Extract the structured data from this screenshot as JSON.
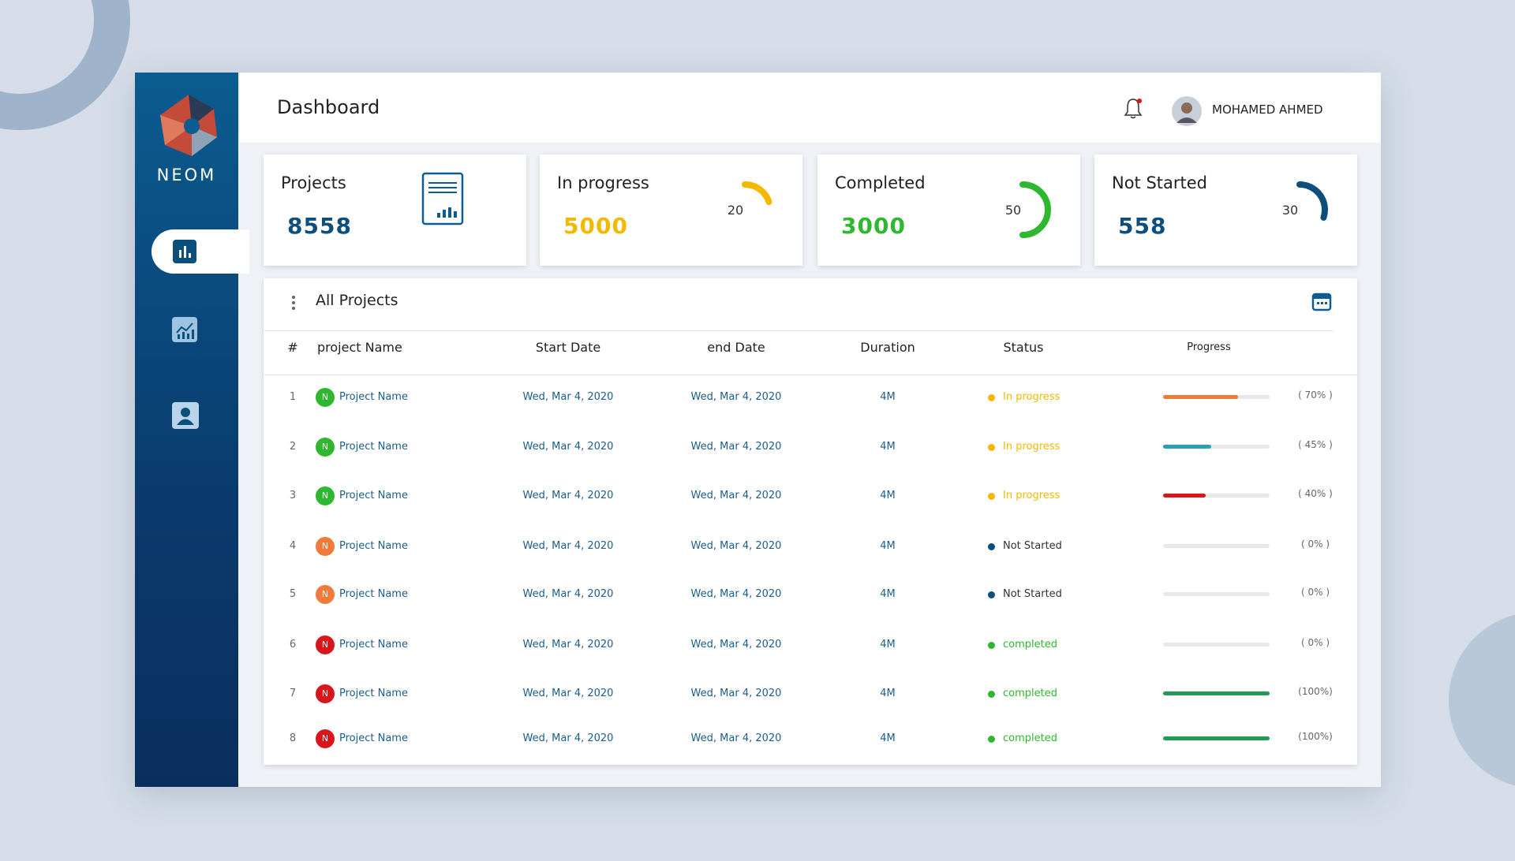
{
  "sidebar": {
    "brand": "NEOM"
  },
  "header": {
    "title": "Dashboard",
    "user": "MOHAMED AHMED"
  },
  "cards": [
    {
      "label": "Projects",
      "value": 8558,
      "color": "#0d4f7c"
    },
    {
      "label": "In progress",
      "value": 5000,
      "gauge": 20,
      "color": "#f5b800"
    },
    {
      "label": "Completed",
      "value": 3000,
      "gauge": 50,
      "color": "#2fb82f"
    },
    {
      "label": "Not Started",
      "value": 558,
      "gauge": 30,
      "color": "#0d4f7c"
    }
  ],
  "table": {
    "title": "All Projects",
    "columns": [
      "#",
      "project Name",
      "Start Date",
      "end Date",
      "Duration",
      "Status",
      "Progress"
    ],
    "rows": [
      {
        "index": 1,
        "initial": "N",
        "initial_color": "#2fb82f",
        "name": "Project Name",
        "start": "Wed, Mar 4, 2020",
        "end": "Wed, Mar 4, 2020",
        "duration": "4M",
        "status": "In progress",
        "status_color": "#f5b800",
        "progress": 70,
        "progress_label": "( 70% )",
        "bar_color": "#f07a3a"
      },
      {
        "index": 2,
        "initial": "N",
        "initial_color": "#2fb82f",
        "name": "Project Name",
        "start": "Wed, Mar 4, 2020",
        "end": "Wed, Mar 4, 2020",
        "duration": "4M",
        "status": "In progress",
        "status_color": "#f5b800",
        "progress": 45,
        "progress_label": "( 45% )",
        "bar_color": "#2a9fb5"
      },
      {
        "index": 3,
        "initial": "N",
        "initial_color": "#2fb82f",
        "name": "Project Name",
        "start": "Wed, Mar 4, 2020",
        "end": "Wed, Mar 4, 2020",
        "duration": "4M",
        "status": "In progress",
        "status_color": "#f5b800",
        "progress": 40,
        "progress_label": "( 40% )",
        "bar_color": "#d9161c"
      },
      {
        "index": 4,
        "initial": "N",
        "initial_color": "#f07a3a",
        "name": "Project Name",
        "start": "Wed, Mar 4, 2020",
        "end": "Wed, Mar 4, 2020",
        "duration": "4M",
        "status": "Not Started",
        "status_color": "#0d4f7c",
        "progress": 0,
        "progress_label": "( 0% )",
        "bar_color": "#0d4f7c"
      },
      {
        "index": 5,
        "initial": "N",
        "initial_color": "#f07a3a",
        "name": "Project Name",
        "start": "Wed, Mar 4, 2020",
        "end": "Wed, Mar 4, 2020",
        "duration": "4M",
        "status": "Not Started",
        "status_color": "#0d4f7c",
        "progress": 0,
        "progress_label": "( 0% )",
        "bar_color": "#0d4f7c"
      },
      {
        "index": 6,
        "initial": "N",
        "initial_color": "#d9161c",
        "name": "Project Name",
        "start": "Wed, Mar 4, 2020",
        "end": "Wed, Mar 4, 2020",
        "duration": "4M",
        "status": "completed",
        "status_color": "#2fb82f",
        "progress": 0,
        "progress_label": "( 0% )",
        "bar_color": "#1f9d55"
      },
      {
        "index": 7,
        "initial": "N",
        "initial_color": "#d9161c",
        "name": "Project Name",
        "start": "Wed, Mar 4, 2020",
        "end": "Wed, Mar 4, 2020",
        "duration": "4M",
        "status": "completed",
        "status_color": "#2fb82f",
        "progress": 100,
        "progress_label": "(100%)",
        "bar_color": "#1f9d55"
      },
      {
        "index": 8,
        "initial": "N",
        "initial_color": "#d9161c",
        "name": "Project Name",
        "start": "Wed, Mar 4, 2020",
        "end": "Wed, Mar 4, 2020",
        "duration": "4M",
        "status": "completed",
        "status_color": "#2fb82f",
        "progress": 100,
        "progress_label": "(100%)",
        "bar_color": "#1f9d55"
      }
    ]
  }
}
